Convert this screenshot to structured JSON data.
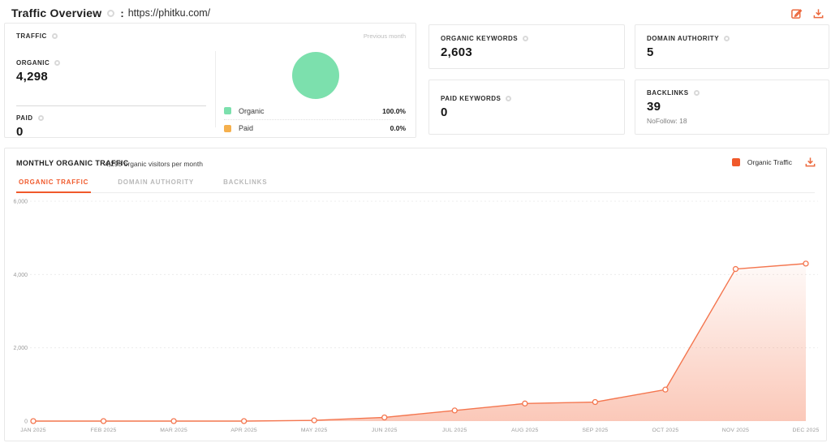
{
  "header": {
    "title": "Traffic Overview",
    "separator": ":",
    "url": "https://phitku.com/"
  },
  "traffic_panel": {
    "title": "TRAFFIC",
    "previous_month": "Previous month",
    "organic": {
      "label": "ORGANIC",
      "value": "4,298"
    },
    "paid": {
      "label": "PAID",
      "value": "0"
    },
    "legend": [
      {
        "label": "Organic",
        "value": "100.0%",
        "color": "#7ce0ad"
      },
      {
        "label": "Paid",
        "value": "0.0%",
        "color": "#f5b04d"
      }
    ]
  },
  "stat_cards": [
    {
      "label": "ORGANIC KEYWORDS",
      "value": "2,603"
    },
    {
      "label": "DOMAIN AUTHORITY",
      "value": "5"
    },
    {
      "label": "PAID KEYWORDS",
      "value": "0"
    },
    {
      "label": "BACKLINKS",
      "value": "39",
      "sub": "NoFollow: 18"
    }
  ],
  "monthly_panel": {
    "title": "MONTHLY ORGANIC TRAFFIC",
    "subtitle": "4,298 organic visitors per month",
    "legend_label": "Organic Traffic",
    "tabs": [
      {
        "label": "ORGANIC TRAFFIC"
      },
      {
        "label": "DOMAIN AUTHORITY"
      },
      {
        "label": "BACKLINKS"
      }
    ]
  },
  "chart_data": {
    "type": "line",
    "title": "Monthly Organic Traffic",
    "x": [
      "JAN 2025",
      "FEB 2025",
      "MAR 2025",
      "APR 2025",
      "MAY 2025",
      "JUN 2025",
      "JUL 2025",
      "AUG 2025",
      "SEP 2025",
      "OCT 2025",
      "NOV 2025",
      "DEC 2025"
    ],
    "series": [
      {
        "name": "Organic Traffic",
        "values": [
          0,
          0,
          0,
          0,
          20,
          100,
          290,
          480,
          520,
          860,
          4150,
          4298
        ]
      }
    ],
    "xlabel": "",
    "ylabel": "",
    "ylim": [
      0,
      6000
    ],
    "yticks": [
      0,
      2000,
      4000,
      6000
    ],
    "grid": "horizontal-dashed",
    "legend_position": "top-right",
    "line_color": "#f4764f",
    "marker": "open-circle",
    "area_fill": "vertical gradient, transparent at line to salmon at baseline"
  },
  "colors": {
    "accent_orange": "#f0592b",
    "line_salmon": "#f4764f",
    "organic_green": "#7ce0ad",
    "paid_amber": "#f5b04d",
    "muted_text": "#9b9b9b",
    "border": "#e8e8e8"
  },
  "icons": [
    "info-icon",
    "edit-icon",
    "download-icon"
  ]
}
